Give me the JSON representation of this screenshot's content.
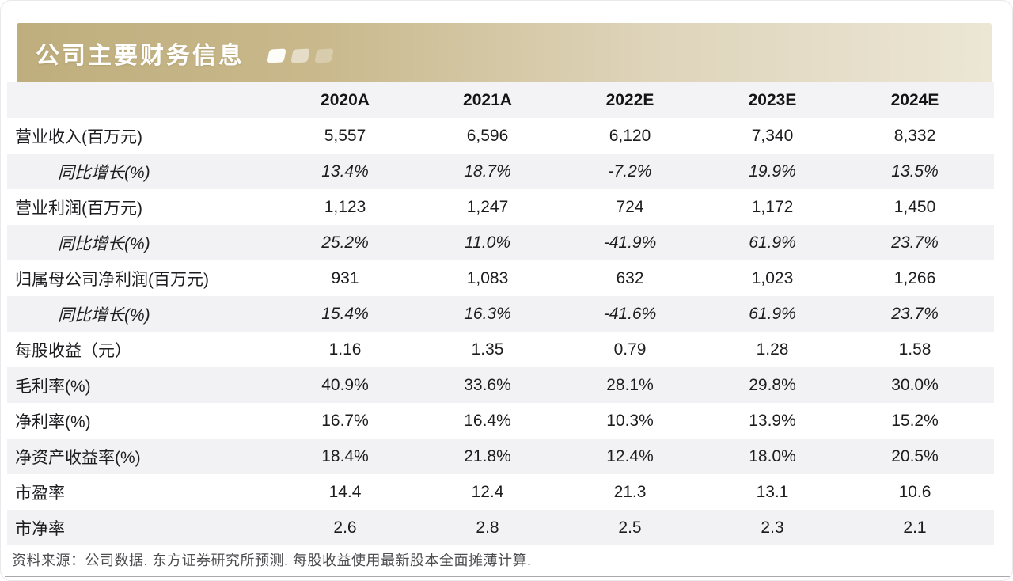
{
  "header": {
    "title": "公司主要财务信息"
  },
  "colors": {
    "title_bar_gold_left": "#bfae7d",
    "title_bar_gold_right": "#ece6d5",
    "header_row_bg": "#f3f3f6",
    "alt_row_bg": "#f2f2f5",
    "text_dark": "#1d1d20",
    "footer_text": "#4d4d50"
  },
  "icons": {
    "decorative_squares": "three-fading-parallelogram-squares"
  },
  "table": {
    "columns": [
      "2020A",
      "2021A",
      "2022E",
      "2023E",
      "2024E"
    ],
    "rows": [
      {
        "label": "营业收入(百万元)",
        "values": [
          "5,557",
          "6,596",
          "6,120",
          "7,340",
          "8,332"
        ]
      },
      {
        "label": "同比增长(%)",
        "values": [
          "13.4%",
          "18.7%",
          "-7.2%",
          "19.9%",
          "13.5%"
        ]
      },
      {
        "label": "营业利润(百万元)",
        "values": [
          "1,123",
          "1,247",
          "724",
          "1,172",
          "1,450"
        ]
      },
      {
        "label": "同比增长(%)",
        "values": [
          "25.2%",
          "11.0%",
          "-41.9%",
          "61.9%",
          "23.7%"
        ]
      },
      {
        "label": "归属母公司净利润(百万元)",
        "values": [
          "931",
          "1,083",
          "632",
          "1,023",
          "1,266"
        ]
      },
      {
        "label": "同比增长(%)",
        "values": [
          "15.4%",
          "16.3%",
          "-41.6%",
          "61.9%",
          "23.7%"
        ]
      },
      {
        "label": "每股收益（元）",
        "values": [
          "1.16",
          "1.35",
          "0.79",
          "1.28",
          "1.58"
        ]
      },
      {
        "label": "毛利率(%)",
        "values": [
          "40.9%",
          "33.6%",
          "28.1%",
          "29.8%",
          "30.0%"
        ]
      },
      {
        "label": "净利率(%)",
        "values": [
          "16.7%",
          "16.4%",
          "10.3%",
          "13.9%",
          "15.2%"
        ]
      },
      {
        "label": "净资产收益率(%)",
        "values": [
          "18.4%",
          "21.8%",
          "12.4%",
          "18.0%",
          "20.5%"
        ]
      },
      {
        "label": "市盈率",
        "values": [
          "14.4",
          "12.4",
          "21.3",
          "13.1",
          "10.6"
        ]
      },
      {
        "label": "市净率",
        "values": [
          "2.6",
          "2.8",
          "2.5",
          "2.3",
          "2.1"
        ]
      }
    ]
  },
  "footer": {
    "source": "资料来源：公司数据. 东方证券研究所预测. 每股收益使用最新股本全面摊薄计算."
  }
}
